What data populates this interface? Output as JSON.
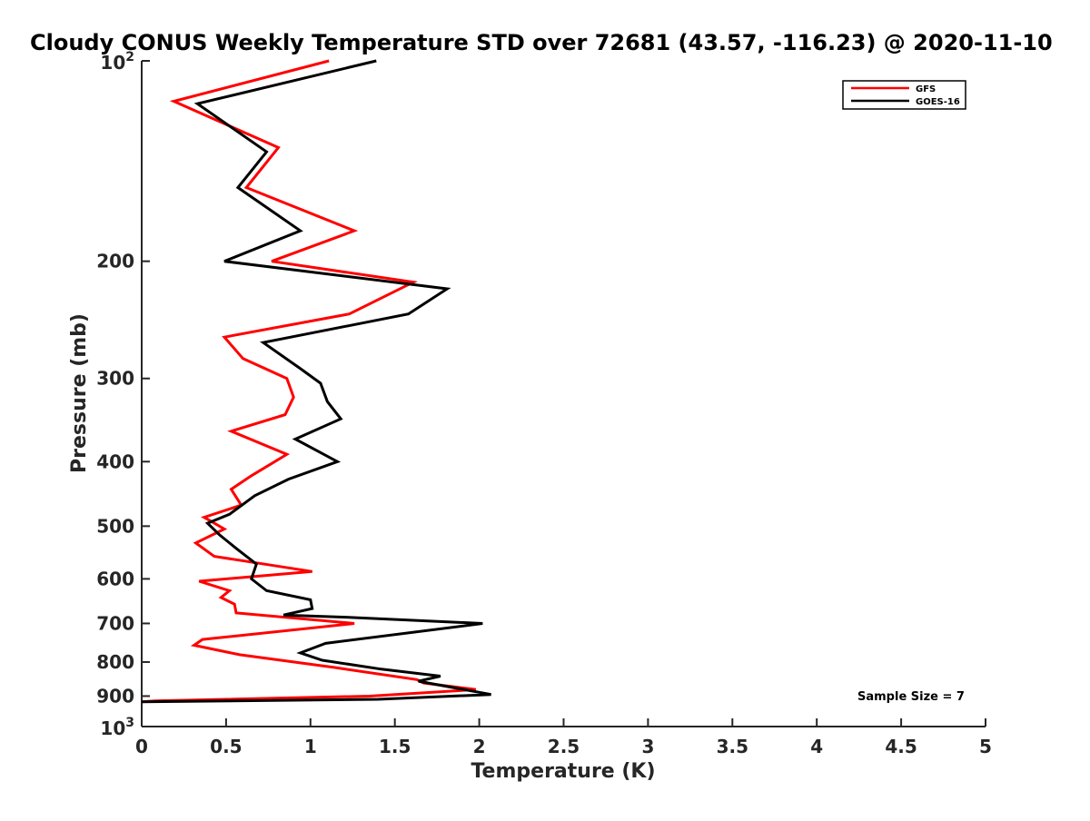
{
  "chart_data": {
    "type": "line",
    "title": "Cloudy CONUS Weekly Temperature STD over 72681 (43.57, -116.23) @ 2020-11-10",
    "xlabel": "Temperature (K)",
    "ylabel": "Pressure (mb)",
    "xlim": [
      0,
      5
    ],
    "ylim": [
      100,
      1000
    ],
    "y_scale": "log",
    "y_reversed": true,
    "grid": false,
    "legend_position": "top-right",
    "x_ticks": [
      "0",
      "0.5",
      "1",
      "1.5",
      "2",
      "2.5",
      "3",
      "3.5",
      "4",
      "4.5",
      "5"
    ],
    "x_tick_values": [
      0,
      0.5,
      1,
      1.5,
      2,
      2.5,
      3,
      3.5,
      4,
      4.5,
      5
    ],
    "y_ticks": [
      {
        "value": 100,
        "base": "10",
        "exp": "2"
      },
      {
        "value": 200,
        "label": "200"
      },
      {
        "value": 300,
        "label": "300"
      },
      {
        "value": 400,
        "label": "400"
      },
      {
        "value": 500,
        "label": "500"
      },
      {
        "value": 600,
        "label": "600"
      },
      {
        "value": 700,
        "label": "700"
      },
      {
        "value": 800,
        "label": "800"
      },
      {
        "value": 900,
        "label": "900"
      },
      {
        "value": 1000,
        "base": "10",
        "exp": "3"
      }
    ],
    "annotation": "Sample Size = 7",
    "series": [
      {
        "name": "GFS",
        "color": "#ff0000",
        "points": [
          [
            1.11,
            100
          ],
          [
            0.19,
            115
          ],
          [
            0.81,
            135
          ],
          [
            0.62,
            155
          ],
          [
            1.26,
            180
          ],
          [
            0.77,
            200
          ],
          [
            1.61,
            215
          ],
          [
            1.23,
            240
          ],
          [
            0.49,
            260
          ],
          [
            0.6,
            280
          ],
          [
            0.86,
            300
          ],
          [
            0.9,
            320
          ],
          [
            0.85,
            340
          ],
          [
            0.53,
            360
          ],
          [
            0.86,
            390
          ],
          [
            0.65,
            420
          ],
          [
            0.53,
            440
          ],
          [
            0.59,
            465
          ],
          [
            0.37,
            485
          ],
          [
            0.49,
            505
          ],
          [
            0.32,
            530
          ],
          [
            0.43,
            555
          ],
          [
            1.01,
            585
          ],
          [
            0.34,
            605
          ],
          [
            0.52,
            625
          ],
          [
            0.47,
            640
          ],
          [
            0.55,
            655
          ],
          [
            0.56,
            675
          ],
          [
            1.26,
            700
          ],
          [
            0.36,
            740
          ],
          [
            0.31,
            755
          ],
          [
            0.58,
            780
          ],
          [
            1.14,
            815
          ],
          [
            1.63,
            850
          ],
          [
            1.67,
            860
          ],
          [
            1.98,
            880
          ],
          [
            1.35,
            900
          ],
          [
            0.08,
            915
          ],
          [
            0.0,
            918
          ]
        ]
      },
      {
        "name": "GOES-16",
        "color": "#000000",
        "points": [
          [
            1.39,
            100
          ],
          [
            0.33,
            116
          ],
          [
            0.74,
            137
          ],
          [
            0.57,
            155
          ],
          [
            0.94,
            180
          ],
          [
            0.49,
            200
          ],
          [
            1.81,
            220
          ],
          [
            1.58,
            240
          ],
          [
            0.72,
            265
          ],
          [
            0.94,
            290
          ],
          [
            1.06,
            305
          ],
          [
            1.1,
            325
          ],
          [
            1.18,
            345
          ],
          [
            0.91,
            370
          ],
          [
            1.16,
            400
          ],
          [
            0.87,
            425
          ],
          [
            0.67,
            450
          ],
          [
            0.52,
            480
          ],
          [
            0.39,
            495
          ],
          [
            0.46,
            515
          ],
          [
            0.56,
            540
          ],
          [
            0.68,
            570
          ],
          [
            0.65,
            600
          ],
          [
            0.74,
            625
          ],
          [
            1.0,
            645
          ],
          [
            1.01,
            665
          ],
          [
            0.84,
            680
          ],
          [
            1.21,
            685
          ],
          [
            2.02,
            700
          ],
          [
            1.09,
            750
          ],
          [
            0.94,
            775
          ],
          [
            1.07,
            795
          ],
          [
            1.42,
            820
          ],
          [
            1.77,
            840
          ],
          [
            1.64,
            855
          ],
          [
            2.07,
            895
          ],
          [
            1.4,
            910
          ],
          [
            0.0,
            918
          ]
        ]
      }
    ]
  }
}
